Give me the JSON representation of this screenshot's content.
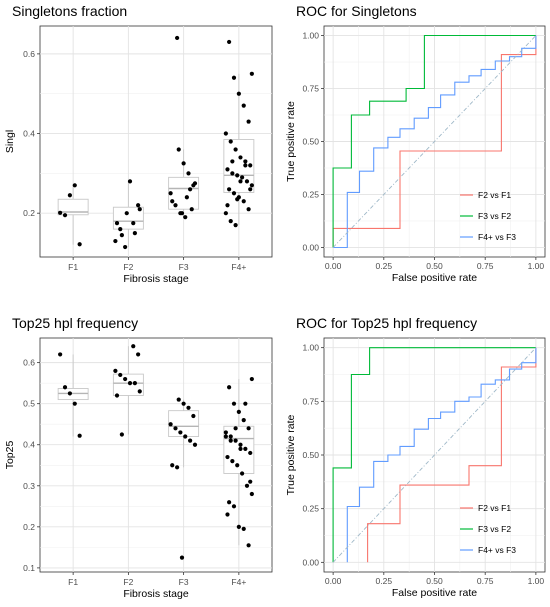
{
  "chart_data": [
    {
      "type": "box",
      "title": "Singletons fraction",
      "xlabel": "Fibrosis stage",
      "ylabel": "Singl",
      "categories": [
        "F1",
        "F2",
        "F3",
        "F4+"
      ],
      "yticks": [
        0.2,
        0.4,
        0.6
      ],
      "ylim": [
        0.09,
        0.67
      ],
      "boxes": [
        {
          "q1": 0.196,
          "median": 0.203,
          "q3": 0.235,
          "lower": 0.121,
          "upper": 0.27
        },
        {
          "q1": 0.16,
          "median": 0.18,
          "q3": 0.215,
          "lower": 0.115,
          "upper": 0.28
        },
        {
          "q1": 0.21,
          "median": 0.262,
          "q3": 0.29,
          "lower": 0.19,
          "upper": 0.36
        },
        {
          "q1": 0.252,
          "median": 0.295,
          "q3": 0.385,
          "lower": 0.17,
          "upper": 0.55
        }
      ],
      "points": [
        [
          0.201,
          0.195,
          0.245,
          0.27,
          0.122
        ],
        [
          0.175,
          0.22,
          0.13,
          0.16,
          0.115,
          0.28,
          0.15,
          0.21,
          0.175,
          0.145,
          0.2
        ],
        [
          0.36,
          0.325,
          0.3,
          0.27,
          0.25,
          0.22,
          0.2,
          0.19,
          0.26,
          0.275,
          0.23,
          0.64,
          0.2,
          0.24,
          0.21
        ],
        [
          0.55,
          0.63,
          0.54,
          0.5,
          0.47,
          0.43,
          0.4,
          0.38,
          0.36,
          0.34,
          0.33,
          0.32,
          0.31,
          0.3,
          0.295,
          0.29,
          0.28,
          0.27,
          0.26,
          0.25,
          0.24,
          0.23,
          0.21,
          0.2,
          0.18,
          0.17,
          0.28,
          0.32,
          0.26,
          0.22,
          0.33,
          0.235
        ]
      ]
    },
    {
      "type": "line",
      "title": "ROC for Singletons",
      "xlabel": "False positive rate",
      "ylabel": "True positive rate",
      "xticks": [
        "0.00",
        "0.25",
        "0.50",
        "0.75",
        "1.00"
      ],
      "yticks": [
        "0.00",
        "0.25",
        "0.50",
        "0.75",
        "1.00"
      ],
      "xlim": [
        0,
        1
      ],
      "ylim": [
        0,
        1
      ],
      "series": [
        {
          "name": "F2 vs F1",
          "color": "#f8766d",
          "x": [
            0,
            0,
            0.33,
            0.33,
            0.83,
            0.83,
            1,
            1
          ],
          "y": [
            0,
            0.09,
            0.09,
            0.455,
            0.455,
            0.91,
            0.91,
            1
          ]
        },
        {
          "name": "F3 vs F2",
          "color": "#00ba38",
          "x": [
            0,
            0,
            0.09,
            0.09,
            0.18,
            0.18,
            0.36,
            0.36,
            0.45,
            0.45,
            1
          ],
          "y": [
            0,
            0.375,
            0.375,
            0.625,
            0.625,
            0.69,
            0.69,
            0.75,
            0.75,
            1,
            1
          ]
        },
        {
          "name": "F4+ vs F3",
          "color": "#619cff",
          "x": [
            0,
            0.07,
            0.07,
            0.13,
            0.13,
            0.2,
            0.2,
            0.27,
            0.27,
            0.33,
            0.33,
            0.4,
            0.4,
            0.47,
            0.47,
            0.53,
            0.53,
            0.6,
            0.6,
            0.67,
            0.67,
            0.73,
            0.73,
            0.8,
            0.8,
            0.87,
            0.87,
            0.93,
            0.93,
            1,
            1
          ],
          "y": [
            0,
            0,
            0.26,
            0.26,
            0.36,
            0.36,
            0.47,
            0.47,
            0.52,
            0.52,
            0.56,
            0.56,
            0.61,
            0.61,
            0.66,
            0.66,
            0.72,
            0.72,
            0.78,
            0.78,
            0.81,
            0.81,
            0.84,
            0.84,
            0.88,
            0.88,
            0.9,
            0.9,
            0.94,
            0.94,
            1
          ]
        },
        {
          "name": "",
          "color": "#9fb8c8",
          "x": [
            0,
            1
          ],
          "y": [
            0,
            1
          ],
          "dash": true
        }
      ]
    },
    {
      "type": "box",
      "title": "Top25 hpl frequency",
      "xlabel": "Fibrosis stage",
      "ylabel": "Top25",
      "categories": [
        "F1",
        "F2",
        "F3",
        "F4+"
      ],
      "yticks": [
        0.1,
        0.2,
        0.3,
        0.4,
        0.5,
        0.6
      ],
      "ylim": [
        0.09,
        0.66
      ],
      "boxes": [
        {
          "q1": 0.51,
          "median": 0.525,
          "q3": 0.537,
          "lower": 0.42,
          "upper": 0.62
        },
        {
          "q1": 0.52,
          "median": 0.55,
          "q3": 0.572,
          "lower": 0.425,
          "upper": 0.64
        },
        {
          "q1": 0.42,
          "median": 0.445,
          "q3": 0.483,
          "lower": 0.345,
          "upper": 0.51
        },
        {
          "q1": 0.33,
          "median": 0.415,
          "q3": 0.445,
          "lower": 0.155,
          "upper": 0.56
        }
      ],
      "points": [
        [
          0.62,
          0.54,
          0.525,
          0.5,
          0.422
        ],
        [
          0.64,
          0.62,
          0.58,
          0.57,
          0.56,
          0.55,
          0.55,
          0.53,
          0.52,
          0.425
        ],
        [
          0.51,
          0.5,
          0.49,
          0.47,
          0.45,
          0.44,
          0.43,
          0.42,
          0.41,
          0.4,
          0.35,
          0.345,
          0.125
        ],
        [
          0.56,
          0.54,
          0.5,
          0.48,
          0.46,
          0.44,
          0.43,
          0.42,
          0.41,
          0.4,
          0.39,
          0.38,
          0.37,
          0.36,
          0.35,
          0.33,
          0.3,
          0.28,
          0.26,
          0.25,
          0.2,
          0.195,
          0.155,
          0.42,
          0.41,
          0.44,
          0.39,
          0.5,
          0.31,
          0.23
        ]
      ]
    },
    {
      "type": "line",
      "title": "ROC for Top25 hpl frequency",
      "xlabel": "False positive rate",
      "ylabel": "True positive rate",
      "xticks": [
        "0.00",
        "0.25",
        "0.50",
        "0.75",
        "1.00"
      ],
      "yticks": [
        "0.00",
        "0.25",
        "0.50",
        "0.75",
        "1.00"
      ],
      "xlim": [
        0,
        1
      ],
      "ylim": [
        0,
        1
      ],
      "series": [
        {
          "name": "F2 vs F1",
          "color": "#f8766d",
          "x": [
            0.17,
            0.17,
            0.33,
            0.33,
            0.5,
            0.5,
            0.67,
            0.67,
            0.83,
            0.83,
            1,
            1
          ],
          "y": [
            0,
            0.18,
            0.18,
            0.36,
            0.36,
            0.36,
            0.36,
            0.45,
            0.45,
            0.91,
            0.91,
            1
          ]
        },
        {
          "name": "F3 vs F2",
          "color": "#00ba38",
          "x": [
            0,
            0,
            0.09,
            0.09,
            0.18,
            0.18,
            1
          ],
          "y": [
            0,
            0.44,
            0.44,
            0.875,
            0.875,
            1,
            1
          ]
        },
        {
          "name": "F4+ vs F3",
          "color": "#619cff",
          "x": [
            0.07,
            0.07,
            0.13,
            0.13,
            0.2,
            0.2,
            0.27,
            0.27,
            0.33,
            0.33,
            0.4,
            0.4,
            0.47,
            0.47,
            0.53,
            0.53,
            0.6,
            0.6,
            0.67,
            0.67,
            0.73,
            0.73,
            0.8,
            0.8,
            0.87,
            0.87,
            0.93,
            0.93,
            1,
            1
          ],
          "y": [
            0,
            0.26,
            0.26,
            0.35,
            0.35,
            0.47,
            0.47,
            0.5,
            0.5,
            0.54,
            0.54,
            0.62,
            0.62,
            0.67,
            0.67,
            0.7,
            0.7,
            0.75,
            0.75,
            0.77,
            0.77,
            0.83,
            0.83,
            0.85,
            0.85,
            0.9,
            0.9,
            0.93,
            0.93,
            1
          ]
        },
        {
          "name": "",
          "color": "#9fb8c8",
          "x": [
            0,
            1
          ],
          "y": [
            0,
            1
          ],
          "dash": true
        }
      ]
    }
  ]
}
